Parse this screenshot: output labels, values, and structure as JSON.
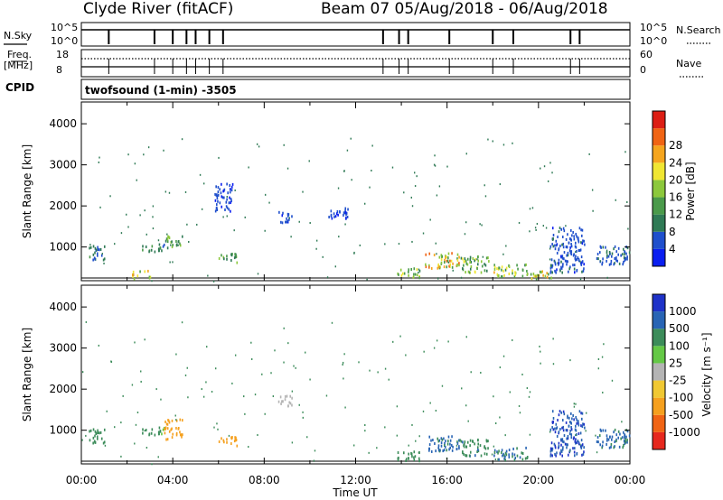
{
  "header": {
    "station": "Clyde River (fitACF)",
    "beam_dates": "Beam 07  05/Aug/2018 - 06/Aug/2018"
  },
  "strips": {
    "nsky_label": "N.Sky",
    "nsky_ticks": [
      "10^5",
      "10^0"
    ],
    "nsearch_label": "N.Search",
    "nsearch_ticks": [
      "10^5",
      "10^0"
    ],
    "freq_label": "Freq.",
    "freq_unit": "[MHz]",
    "freq_ticks": [
      "18",
      "8"
    ],
    "nave_label": "Nave",
    "nave_ticks": [
      "60",
      "0"
    ],
    "cpid_label": "CPID",
    "cpid_value": "twofsound (1-min) -3505"
  },
  "chart_data": [
    {
      "type": "heatmap",
      "name": "power",
      "ylabel": "Slant Range [km]",
      "xlabel": "",
      "yticks": [
        "1000",
        "2000",
        "3000",
        "4000"
      ],
      "ylim": [
        180,
        4530
      ],
      "xticks": [
        "00:00",
        "04:00",
        "08:00",
        "12:00",
        "16:00",
        "20:00",
        "00:00"
      ],
      "xlim_hours": [
        0,
        24
      ],
      "colorbar": {
        "label": "Power [dB]",
        "ticks": [
          "4",
          "8",
          "12",
          "16",
          "20",
          "24",
          "28"
        ],
        "colors": [
          "#0a1ef0",
          "#1f4fcc",
          "#2f7a55",
          "#4a9a4a",
          "#8cc83c",
          "#f0e632",
          "#f5a51e",
          "#f06414",
          "#dc1e14"
        ]
      },
      "regions": [
        {
          "h": [
            0.2,
            1.0
          ],
          "r": [
            700,
            1050
          ],
          "v": 9
        },
        {
          "h": [
            2.6,
            3.6
          ],
          "r": [
            900,
            1100
          ],
          "v": 10
        },
        {
          "h": [
            3.6,
            4.4
          ],
          "r": [
            1000,
            1300
          ],
          "v": 14
        },
        {
          "h": [
            2.2,
            3.0
          ],
          "r": [
            250,
            450
          ],
          "v": 22
        },
        {
          "h": [
            6.0,
            6.8
          ],
          "r": [
            650,
            900
          ],
          "v": 13
        },
        {
          "h": [
            13.8,
            14.8
          ],
          "r": [
            280,
            520
          ],
          "v": 18
        },
        {
          "h": [
            15.0,
            16.5
          ],
          "r": [
            500,
            900
          ],
          "v": 22
        },
        {
          "h": [
            16.5,
            17.8
          ],
          "r": [
            400,
            800
          ],
          "v": 16
        },
        {
          "h": [
            18.0,
            19.5
          ],
          "r": [
            300,
            600
          ],
          "v": 18
        },
        {
          "h": [
            19.5,
            20.6
          ],
          "r": [
            250,
            450
          ],
          "v": 20
        },
        {
          "h": [
            20.5,
            22.0
          ],
          "r": [
            400,
            1500
          ],
          "v": 6
        },
        {
          "h": [
            22.5,
            24.0
          ],
          "r": [
            600,
            1050
          ],
          "v": 7
        },
        {
          "h": [
            8.6,
            9.2
          ],
          "r": [
            1600,
            1900
          ],
          "v": 6
        },
        {
          "h": [
            10.8,
            11.8
          ],
          "r": [
            1700,
            2000
          ],
          "v": 5
        },
        {
          "h": [
            5.8,
            6.6
          ],
          "r": [
            1900,
            2600
          ],
          "v": 5
        }
      ]
    },
    {
      "type": "heatmap",
      "name": "velocity",
      "ylabel": "Slant Range [km]",
      "xlabel": "Time UT",
      "yticks": [
        "1000",
        "2000",
        "3000",
        "4000"
      ],
      "ylim": [
        180,
        4530
      ],
      "xticks": [
        "00:00",
        "04:00",
        "08:00",
        "12:00",
        "16:00",
        "20:00",
        "00:00"
      ],
      "xlim_hours": [
        0,
        24
      ],
      "colorbar": {
        "label": "Velocity [m s⁻¹]",
        "ticks": [
          "1000",
          "500",
          "100",
          "25",
          "-25",
          "-100",
          "-500",
          "-1000"
        ],
        "colors": [
          "#1e32c8",
          "#2864b4",
          "#3c8c5a",
          "#64c846",
          "#b4b4b4",
          "#f0c832",
          "#f5a01e",
          "#f06414",
          "#e6281e"
        ]
      },
      "regions": [
        {
          "h": [
            0.2,
            1.0
          ],
          "r": [
            700,
            1050
          ],
          "v": 200
        },
        {
          "h": [
            2.6,
            3.6
          ],
          "r": [
            900,
            1100
          ],
          "v": 120
        },
        {
          "h": [
            3.6,
            4.4
          ],
          "r": [
            800,
            1300
          ],
          "v": -250
        },
        {
          "h": [
            6.0,
            6.8
          ],
          "r": [
            650,
            900
          ],
          "v": -300
        },
        {
          "h": [
            8.6,
            9.2
          ],
          "r": [
            1600,
            1900
          ],
          "v": 0
        },
        {
          "h": [
            13.8,
            14.8
          ],
          "r": [
            280,
            520
          ],
          "v": 300
        },
        {
          "h": [
            15.0,
            16.5
          ],
          "r": [
            500,
            900
          ],
          "v": 700
        },
        {
          "h": [
            16.5,
            17.8
          ],
          "r": [
            400,
            800
          ],
          "v": 400
        },
        {
          "h": [
            18.0,
            19.5
          ],
          "r": [
            300,
            600
          ],
          "v": 500
        },
        {
          "h": [
            20.5,
            22.0
          ],
          "r": [
            400,
            1500
          ],
          "v": 900
        },
        {
          "h": [
            22.5,
            24.0
          ],
          "r": [
            600,
            1050
          ],
          "v": 600
        }
      ]
    }
  ]
}
